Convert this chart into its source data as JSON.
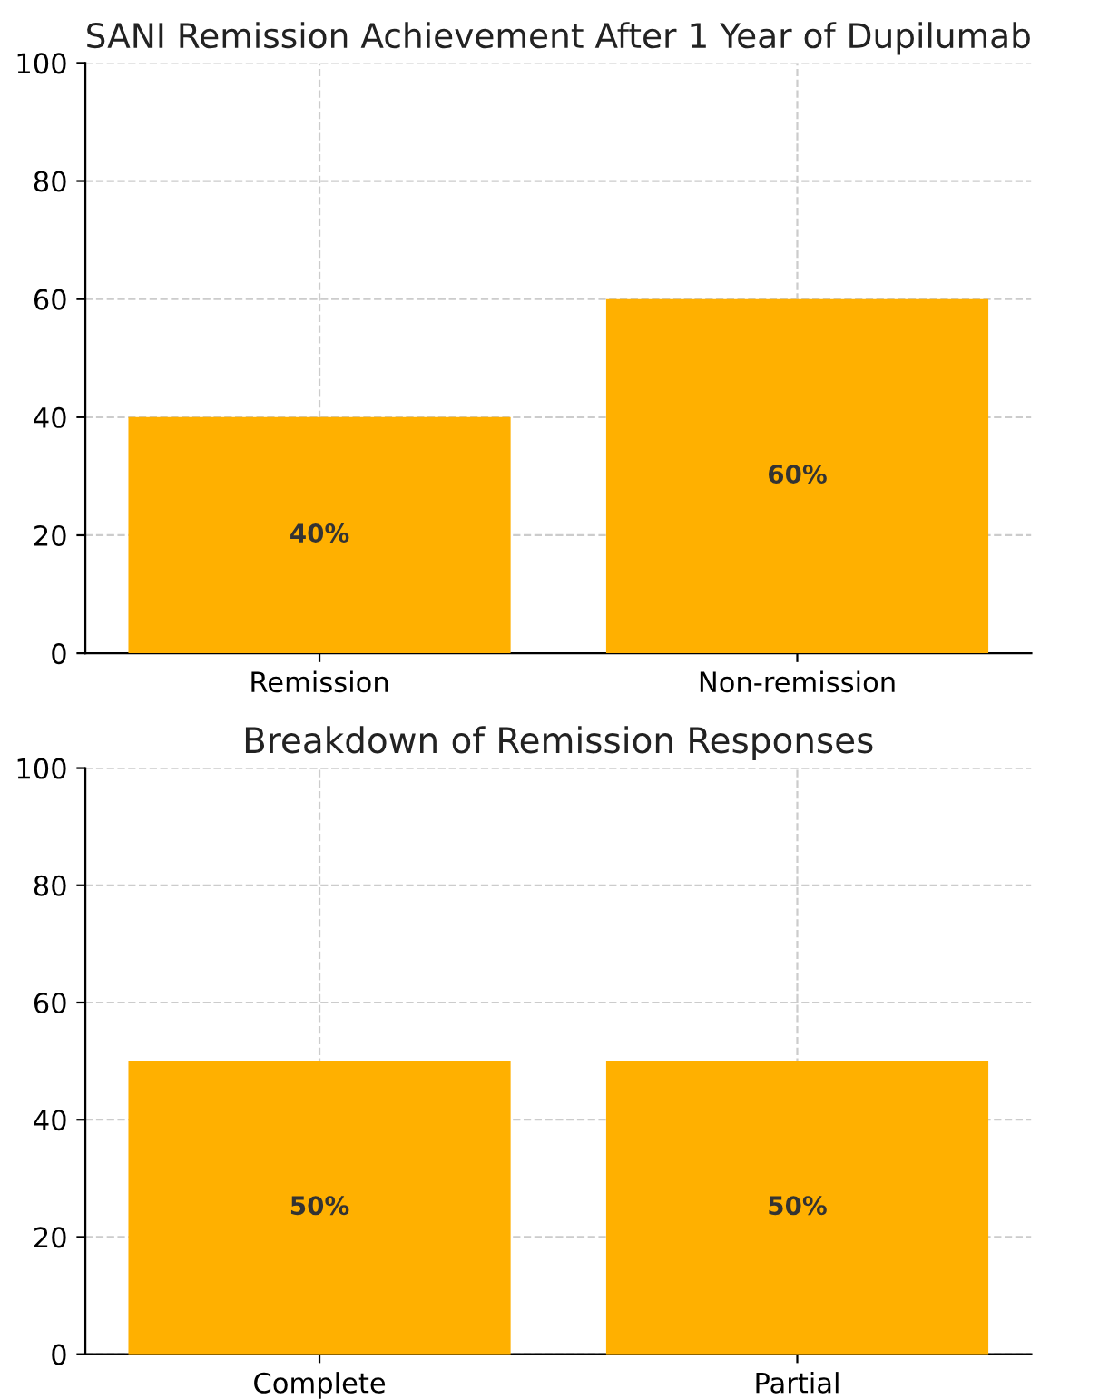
{
  "chart_data": [
    {
      "type": "bar",
      "title": "SANI Remission Achievement After 1 Year of Dupilumab",
      "categories": [
        "Remission",
        "Non-remission"
      ],
      "values": [
        40,
        60
      ],
      "value_labels": [
        "40%",
        "60%"
      ],
      "color": "#ffb000",
      "ylim": [
        0,
        100
      ],
      "yticks": [
        0,
        20,
        40,
        60,
        80,
        100
      ],
      "grid": true
    },
    {
      "type": "bar",
      "title": "Breakdown of Remission Responses",
      "categories": [
        "Complete",
        "Partial"
      ],
      "values": [
        50,
        50
      ],
      "value_labels": [
        "50%",
        "50%"
      ],
      "color": "#ffb000",
      "ylim": [
        0,
        100
      ],
      "yticks": [
        0,
        20,
        40,
        60,
        80,
        100
      ],
      "grid": true
    }
  ]
}
